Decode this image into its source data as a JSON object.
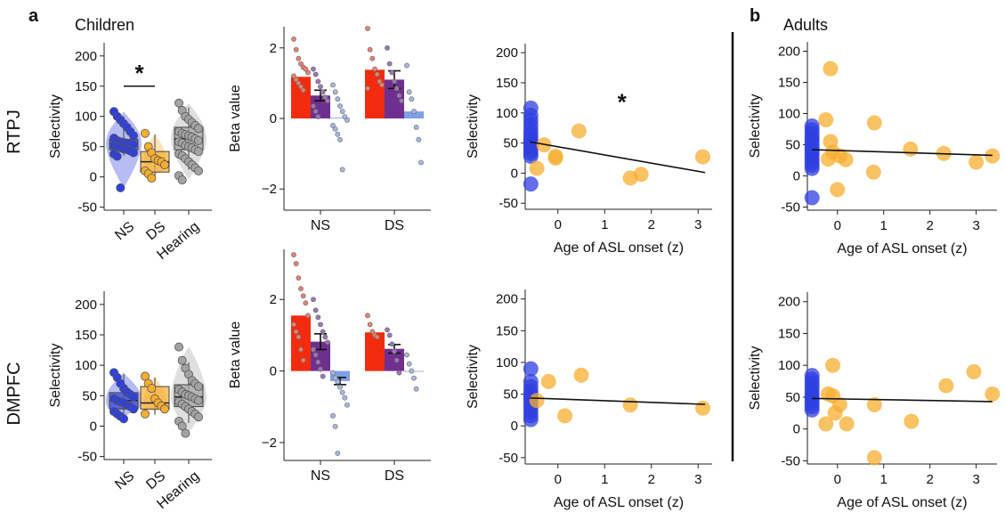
{
  "figure": {
    "panel_a_letter": "a",
    "panel_b_letter": "b",
    "children_title": "Children",
    "adults_title": "Adults",
    "row_labels": [
      "RTPJ",
      "DMPFC"
    ]
  },
  "colors": {
    "ns": "#2f3fe0",
    "ds": "#f7ad2f",
    "hearing": "#a3a3a3",
    "bar_red": "#f32b0e",
    "bar_purple": "#6f2f8f",
    "bar_blue": "#7fa0e6",
    "dot_red": "#e48373",
    "dot_purple": "#9a79b2",
    "dot_blue": "#a6b9e4"
  },
  "chart_data": [
    {
      "id": "rtpj-children-violin",
      "type": "box",
      "ylabel": "Selectivity",
      "ylim": [
        -55,
        210
      ],
      "yticks": [
        -50,
        0,
        50,
        100,
        150,
        200
      ],
      "categories": [
        "NS",
        "DS",
        "Hearing"
      ],
      "significance": "*",
      "groups": [
        {
          "name": "NS",
          "median": 55,
          "q1": 45,
          "q3": 62,
          "whisker_low": 35,
          "whisker_high": 100,
          "points": [
            108,
            100,
            94,
            88,
            82,
            75,
            68,
            64,
            60,
            58,
            57,
            56,
            55,
            54,
            52,
            50,
            48,
            46,
            45,
            43,
            40,
            38,
            34,
            -18
          ]
        },
        {
          "name": "DS",
          "median": 25,
          "q1": 8,
          "q3": 42,
          "whisker_low": -2,
          "whisker_high": 70,
          "points": [
            72,
            50,
            40,
            30,
            27,
            25,
            20,
            10,
            5,
            -2
          ]
        },
        {
          "name": "Hearing",
          "median": 63,
          "q1": 45,
          "q3": 82,
          "whisker_low": 12,
          "whisker_high": 115,
          "points": [
            122,
            110,
            100,
            95,
            90,
            85,
            80,
            75,
            72,
            70,
            68,
            66,
            63,
            60,
            58,
            56,
            52,
            50,
            48,
            45,
            42,
            38,
            35,
            30,
            25,
            20,
            15,
            10,
            2,
            -5
          ]
        }
      ]
    },
    {
      "id": "rtpj-children-bars",
      "type": "bar",
      "ylabel": "Beta value",
      "ylim": [
        -2.6,
        2.6
      ],
      "yticks": [
        -2,
        0,
        2
      ],
      "categories": [
        "NS",
        "DS"
      ],
      "series": [
        {
          "values": [
            1.18,
            1.38
          ],
          "errors": [
            0,
            0
          ],
          "points": [
            [
              2.25,
              1.95,
              1.7,
              1.55,
              1.45,
              1.4,
              1.3,
              1.2,
              1.1,
              1.0,
              0.9,
              0.8
            ],
            [
              2.55,
              1.95,
              1.7,
              1.4,
              1.25,
              1.05,
              0.95,
              0.85
            ]
          ]
        },
        {
          "values": [
            0.65,
            1.1
          ],
          "errors": [
            0.15,
            0.25
          ],
          "points": [
            [
              1.4,
              1.25,
              1.05,
              0.9,
              0.75,
              0.6,
              0.5,
              0.35,
              0.2,
              0.05
            ],
            [
              2.0,
              1.55,
              1.3,
              1.05,
              0.85,
              0.65,
              0.5
            ]
          ]
        },
        {
          "values": [
            0.02,
            0.2
          ],
          "errors": [
            0,
            0
          ],
          "points": [
            [
              0.95,
              0.75,
              0.55,
              0.35,
              0.2,
              0.05,
              -0.05,
              -0.2,
              -0.3,
              -0.45,
              -0.6,
              -1.45
            ],
            [
              1.5,
              0.75,
              0.55,
              0.2,
              -0.25,
              -0.6,
              -1.25
            ]
          ]
        }
      ]
    },
    {
      "id": "rtpj-children-scatter",
      "type": "scatter",
      "xlabel": "Age of ASL onset (z)",
      "ylabel": "Selectivity",
      "xlim": [
        -0.7,
        3.3
      ],
      "ylim": [
        -60,
        215
      ],
      "xticks": [
        0,
        1,
        2,
        3
      ],
      "yticks": [
        -50,
        0,
        50,
        100,
        150,
        200
      ],
      "significance": "*",
      "fit": {
        "x": [
          -0.6,
          3.15
        ],
        "y": [
          52,
          1
        ]
      },
      "series": [
        {
          "group": "NS",
          "points": [
            [
              -0.58,
              108
            ],
            [
              -0.58,
              96
            ],
            [
              -0.58,
              88
            ],
            [
              -0.58,
              80
            ],
            [
              -0.58,
              72
            ],
            [
              -0.58,
              66
            ],
            [
              -0.58,
              60
            ],
            [
              -0.58,
              55
            ],
            [
              -0.58,
              51
            ],
            [
              -0.58,
              47
            ],
            [
              -0.58,
              43
            ],
            [
              -0.58,
              38
            ],
            [
              -0.58,
              33
            ],
            [
              -0.58,
              28
            ],
            [
              -0.58,
              -18
            ]
          ]
        },
        {
          "group": "DS",
          "points": [
            [
              -0.3,
              47
            ],
            [
              -0.45,
              8
            ],
            [
              -0.05,
              28
            ],
            [
              -0.05,
              25
            ],
            [
              0.45,
              70
            ],
            [
              1.55,
              -8
            ],
            [
              1.78,
              -2
            ],
            [
              3.1,
              27
            ]
          ]
        }
      ]
    },
    {
      "id": "rtpj-adults-scatter",
      "type": "scatter",
      "xlabel": "Age of ASL onset (z)",
      "ylabel": "Selectivity",
      "xlim": [
        -0.65,
        3.45
      ],
      "ylim": [
        -55,
        215
      ],
      "xticks": [
        0,
        1,
        2,
        3
      ],
      "yticks": [
        -50,
        0,
        50,
        100,
        150,
        200
      ],
      "fit": {
        "x": [
          -0.55,
          3.35
        ],
        "y": [
          42,
          33
        ]
      },
      "series": [
        {
          "group": "NS",
          "points": [
            [
              -0.55,
              80
            ],
            [
              -0.55,
              74
            ],
            [
              -0.55,
              68
            ],
            [
              -0.55,
              62
            ],
            [
              -0.55,
              57
            ],
            [
              -0.55,
              52
            ],
            [
              -0.55,
              47
            ],
            [
              -0.55,
              42
            ],
            [
              -0.55,
              37
            ],
            [
              -0.55,
              32
            ],
            [
              -0.55,
              27
            ],
            [
              -0.55,
              22
            ],
            [
              -0.55,
              17
            ],
            [
              -0.55,
              12
            ],
            [
              -0.55,
              -35
            ]
          ]
        },
        {
          "group": "DS",
          "points": [
            [
              -0.15,
              172
            ],
            [
              -0.25,
              90
            ],
            [
              -0.15,
              55
            ],
            [
              -0.1,
              38
            ],
            [
              -0.2,
              27
            ],
            [
              0.05,
              32
            ],
            [
              0.18,
              26
            ],
            [
              0.0,
              -22
            ],
            [
              0.8,
              85
            ],
            [
              0.78,
              6
            ],
            [
              1.58,
              43
            ],
            [
              2.3,
              36
            ],
            [
              3.0,
              22
            ],
            [
              3.35,
              32
            ]
          ]
        }
      ]
    },
    {
      "id": "dmpfc-children-violin",
      "type": "box",
      "ylabel": "Selectivity",
      "ylim": [
        -55,
        210
      ],
      "yticks": [
        -50,
        0,
        50,
        100,
        150,
        200
      ],
      "categories": [
        "NS",
        "DS",
        "Hearing"
      ],
      "groups": [
        {
          "name": "NS",
          "median": 42,
          "q1": 28,
          "q3": 55,
          "whisker_low": 12,
          "whisker_high": 85,
          "points": [
            88,
            80,
            70,
            62,
            56,
            52,
            48,
            45,
            42,
            40,
            38,
            35,
            32,
            28,
            24,
            20,
            16,
            12
          ]
        },
        {
          "name": "DS",
          "median": 38,
          "q1": 28,
          "q3": 65,
          "whisker_low": 18,
          "whisker_high": 80,
          "points": [
            82,
            70,
            62,
            45,
            38,
            33,
            28,
            20
          ]
        },
        {
          "name": "Hearing",
          "median": 48,
          "q1": 32,
          "q3": 68,
          "whisker_low": 5,
          "whisker_high": 105,
          "points": [
            130,
            108,
            95,
            85,
            75,
            70,
            65,
            60,
            56,
            52,
            50,
            48,
            45,
            42,
            40,
            36,
            32,
            28,
            24,
            20,
            15,
            8,
            0,
            -12
          ]
        }
      ]
    },
    {
      "id": "dmpfc-children-bars",
      "type": "bar",
      "ylabel": "Beta value",
      "ylim": [
        -2.5,
        3.4
      ],
      "yticks": [
        -2,
        0,
        2
      ],
      "categories": [
        "NS",
        "DS"
      ],
      "series": [
        {
          "values": [
            1.55,
            1.08
          ],
          "errors": [
            0,
            0
          ],
          "points": [
            [
              3.25,
              3.0,
              2.6,
              2.3,
              2.1,
              1.9,
              1.55,
              1.3,
              1.1,
              0.95,
              0.6,
              0.3
            ],
            [
              1.55,
              1.3,
              1.1,
              1.0,
              0.95
            ]
          ]
        },
        {
          "values": [
            0.82,
            0.62
          ],
          "errors": [
            0.22,
            0.12
          ],
          "points": [
            [
              2.0,
              1.7,
              1.5,
              1.3,
              1.1,
              0.95,
              0.8,
              0.6,
              0.45,
              0.25,
              0.05,
              -0.15
            ],
            [
              1.15,
              1.0,
              0.75,
              0.55,
              0.3,
              -0.05
            ]
          ]
        },
        {
          "values": [
            -0.28,
            -0.02
          ],
          "errors": [
            0.1,
            0
          ],
          "points": [
            [
              -0.05,
              -0.2,
              -0.3,
              -0.45,
              -0.6,
              -0.75,
              -0.95,
              -1.25,
              -1.55,
              -2.3
            ],
            [
              0.45,
              0.2,
              0.0,
              -0.2,
              -0.5
            ]
          ]
        }
      ]
    },
    {
      "id": "dmpfc-children-scatter",
      "type": "scatter",
      "xlabel": "Age of ASL onset (z)",
      "ylabel": "Selectivity",
      "xlim": [
        -0.7,
        3.3
      ],
      "ylim": [
        -60,
        215
      ],
      "xticks": [
        0,
        1,
        2,
        3
      ],
      "yticks": [
        -50,
        0,
        50,
        100,
        150,
        200
      ],
      "fit": {
        "x": [
          -0.6,
          3.15
        ],
        "y": [
          44,
          34
        ]
      },
      "series": [
        {
          "group": "NS",
          "points": [
            [
              -0.58,
              90
            ],
            [
              -0.58,
              70
            ],
            [
              -0.58,
              62
            ],
            [
              -0.58,
              55
            ],
            [
              -0.58,
              50
            ],
            [
              -0.58,
              45
            ],
            [
              -0.58,
              40
            ],
            [
              -0.58,
              34
            ],
            [
              -0.58,
              28
            ],
            [
              -0.58,
              22
            ],
            [
              -0.58,
              16
            ],
            [
              -0.58,
              10
            ]
          ]
        },
        {
          "group": "DS",
          "points": [
            [
              -0.45,
              40
            ],
            [
              -0.2,
              70
            ],
            [
              0.15,
              16
            ],
            [
              0.5,
              80
            ],
            [
              1.55,
              33
            ],
            [
              3.1,
              28
            ]
          ]
        }
      ]
    },
    {
      "id": "dmpfc-adults-scatter",
      "type": "scatter",
      "xlabel": "Age of ASL onset (z)",
      "ylabel": "Selectivity",
      "xlim": [
        -0.65,
        3.45
      ],
      "ylim": [
        -55,
        215
      ],
      "xticks": [
        0,
        1,
        2,
        3
      ],
      "yticks": [
        -50,
        0,
        50,
        100,
        150,
        200
      ],
      "fit": {
        "x": [
          -0.55,
          3.35
        ],
        "y": [
          48,
          43
        ]
      },
      "series": [
        {
          "group": "NS",
          "points": [
            [
              -0.55,
              84
            ],
            [
              -0.55,
              78
            ],
            [
              -0.55,
              72
            ],
            [
              -0.55,
              66
            ],
            [
              -0.55,
              60
            ],
            [
              -0.55,
              55
            ],
            [
              -0.55,
              50
            ],
            [
              -0.55,
              45
            ],
            [
              -0.55,
              40
            ],
            [
              -0.55,
              35
            ],
            [
              -0.55,
              30
            ]
          ]
        },
        {
          "group": "DS",
          "points": [
            [
              -0.1,
              100
            ],
            [
              -0.2,
              55
            ],
            [
              -0.1,
              52
            ],
            [
              0.05,
              38
            ],
            [
              -0.05,
              25
            ],
            [
              0.2,
              8
            ],
            [
              -0.25,
              8
            ],
            [
              0.8,
              38
            ],
            [
              0.8,
              -45
            ],
            [
              1.6,
              12
            ],
            [
              2.35,
              68
            ],
            [
              2.95,
              90
            ],
            [
              3.35,
              55
            ]
          ]
        }
      ]
    }
  ]
}
